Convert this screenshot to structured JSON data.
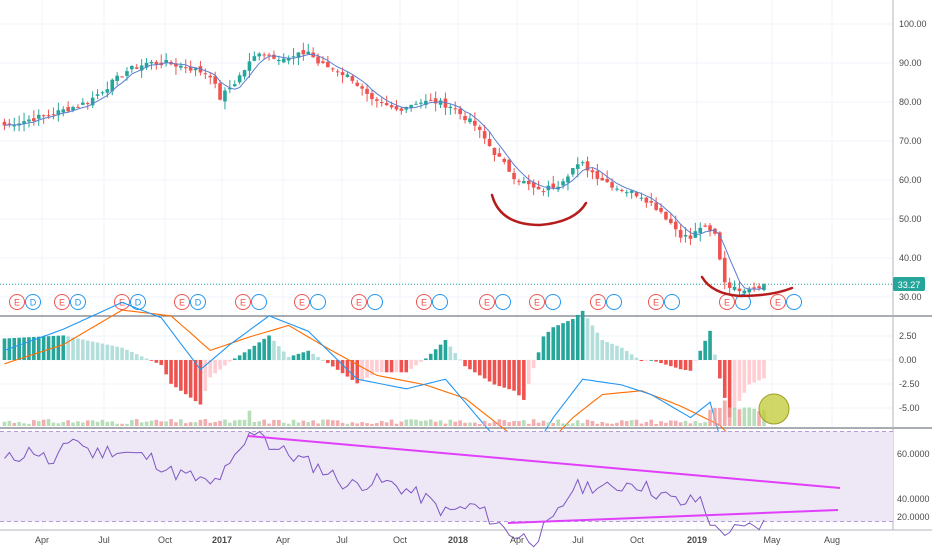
{
  "colors": {
    "up": "#26a69a",
    "down": "#ef5350",
    "ma": "#5b7fd1",
    "macd_line": "#2196f3",
    "signal_line": "#ff6d00",
    "hist_pos_strong": "#26a69a",
    "hist_pos_weak": "#b2dfdb",
    "hist_neg_strong": "#ef5350",
    "hist_neg_weak": "#ffcdd2",
    "rsi_line": "#7e57c2",
    "rsi_band": "#ede7f6",
    "annotation_red": "#b71c1c",
    "annotation_magenta": "#e040fb",
    "annotation_circle": "#c0ca33",
    "price_tag_bg": "#26a69a",
    "grid": "#f0f3fa",
    "axis_text": "#4a4a4a"
  },
  "price_tag": "33.27",
  "chart_data": [
    {
      "type": "candlestick",
      "panel": "price",
      "y_ticks": [
        "100.00",
        "90.00",
        "80.00",
        "70.00",
        "60.00",
        "50.00",
        "40.00",
        "30.00"
      ],
      "ylim": [
        28,
        104
      ],
      "last_price": 33.27,
      "x_labels": [
        "Apr",
        "Jul",
        "Oct",
        "2017",
        "Apr",
        "Jul",
        "Oct",
        "2018",
        "Apr",
        "Jul",
        "Oct",
        "2019",
        "May",
        "Aug"
      ],
      "close_anchors": [
        [
          0,
          74
        ],
        [
          10,
          77
        ],
        [
          17,
          80
        ],
        [
          25,
          88
        ],
        [
          29,
          90
        ],
        [
          33,
          90
        ],
        [
          37,
          89
        ],
        [
          42,
          87
        ],
        [
          44,
          81
        ],
        [
          47,
          85
        ],
        [
          50,
          90
        ],
        [
          52,
          93
        ],
        [
          54,
          92
        ],
        [
          58,
          91
        ],
        [
          62,
          93
        ],
        [
          64,
          90
        ],
        [
          68,
          88
        ],
        [
          71,
          86
        ],
        [
          75,
          80
        ],
        [
          80,
          78
        ],
        [
          84,
          80
        ],
        [
          88,
          80
        ],
        [
          91,
          79
        ],
        [
          96,
          74
        ],
        [
          100,
          67
        ],
        [
          104,
          61
        ],
        [
          109,
          57
        ],
        [
          113,
          59
        ],
        [
          116,
          63
        ],
        [
          118,
          64
        ],
        [
          121,
          61
        ],
        [
          125,
          58
        ],
        [
          130,
          56
        ],
        [
          134,
          52
        ],
        [
          138,
          46
        ],
        [
          140,
          45
        ],
        [
          142,
          48
        ],
        [
          145,
          46
        ],
        [
          147,
          34
        ],
        [
          149,
          32
        ],
        [
          152,
          32.5
        ],
        [
          155,
          33.27
        ]
      ],
      "earnings_markers": [
        "E",
        "D",
        "E",
        "D",
        "E",
        "D",
        "E",
        "D",
        "E",
        "",
        "E",
        "",
        "E",
        "",
        "E",
        "",
        "E",
        "",
        "E",
        "",
        "E",
        "",
        "E",
        "",
        "E",
        "",
        "E",
        "",
        "E",
        ""
      ]
    },
    {
      "type": "macd",
      "panel": "macd",
      "y_ticks": [
        "2.50",
        "0.00",
        "-2.50",
        "-5.00"
      ],
      "ylim": [
        -6.5,
        3.5
      ],
      "macd_anchors": [
        [
          0,
          0.5
        ],
        [
          12,
          1.6
        ],
        [
          24,
          3.0
        ],
        [
          32,
          2.2
        ],
        [
          40,
          -0.5
        ],
        [
          46,
          0.8
        ],
        [
          54,
          2.3
        ],
        [
          62,
          1.5
        ],
        [
          72,
          -1.0
        ],
        [
          82,
          -1.5
        ],
        [
          90,
          -1.0
        ],
        [
          100,
          -4.0
        ],
        [
          106,
          -5.5
        ],
        [
          112,
          -3.0
        ],
        [
          118,
          -1.0
        ],
        [
          126,
          -1.3
        ],
        [
          132,
          -1.8
        ],
        [
          140,
          -3.0
        ],
        [
          144,
          -2.2
        ],
        [
          148,
          -5.8
        ],
        [
          155,
          -5.8
        ]
      ],
      "signal_anchors": [
        [
          0,
          -0.2
        ],
        [
          12,
          0.8
        ],
        [
          24,
          2.6
        ],
        [
          34,
          2.3
        ],
        [
          42,
          0.5
        ],
        [
          50,
          1.2
        ],
        [
          58,
          1.8
        ],
        [
          66,
          0.6
        ],
        [
          76,
          -0.8
        ],
        [
          86,
          -1.3
        ],
        [
          94,
          -2.0
        ],
        [
          104,
          -4.0
        ],
        [
          110,
          -4.6
        ],
        [
          116,
          -3.0
        ],
        [
          122,
          -1.8
        ],
        [
          130,
          -1.6
        ],
        [
          138,
          -2.4
        ],
        [
          146,
          -3.4
        ],
        [
          152,
          -5.0
        ],
        [
          155,
          -5.2
        ]
      ]
    },
    {
      "type": "rsi",
      "panel": "rsi",
      "y_ticks": [
        "60.0000",
        "40.0000",
        "20.0000"
      ],
      "ylim": [
        12,
        78
      ],
      "band": [
        30,
        70
      ],
      "rsi_anchors": [
        [
          0,
          57
        ],
        [
          6,
          62
        ],
        [
          10,
          55
        ],
        [
          14,
          68
        ],
        [
          18,
          60
        ],
        [
          22,
          62
        ],
        [
          26,
          60
        ],
        [
          30,
          58
        ],
        [
          34,
          52
        ],
        [
          38,
          50
        ],
        [
          42,
          46
        ],
        [
          46,
          54
        ],
        [
          50,
          68
        ],
        [
          52,
          72
        ],
        [
          54,
          64
        ],
        [
          58,
          60
        ],
        [
          62,
          56
        ],
        [
          66,
          52
        ],
        [
          70,
          46
        ],
        [
          76,
          48
        ],
        [
          80,
          46
        ],
        [
          86,
          40
        ],
        [
          90,
          34
        ],
        [
          96,
          37
        ],
        [
          100,
          30
        ],
        [
          104,
          24
        ],
        [
          108,
          22
        ],
        [
          112,
          30
        ],
        [
          116,
          45
        ],
        [
          120,
          46
        ],
        [
          124,
          44
        ],
        [
          128,
          48
        ],
        [
          132,
          44
        ],
        [
          136,
          40
        ],
        [
          138,
          38
        ],
        [
          142,
          40
        ],
        [
          145,
          26
        ],
        [
          150,
          26
        ],
        [
          155,
          29
        ]
      ]
    }
  ]
}
